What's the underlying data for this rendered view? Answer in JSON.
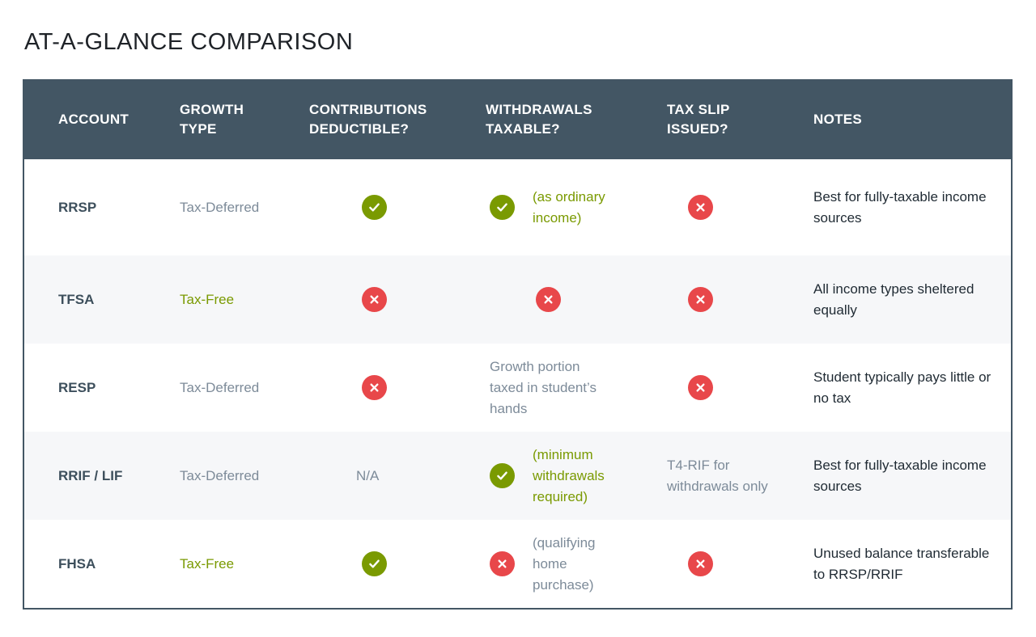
{
  "title": "AT-A-GLANCE COMPARISON",
  "colors": {
    "header": "#435664",
    "yes": "#7a9a01",
    "no": "#e8474a"
  },
  "columns": [
    "ACCOUNT",
    "GROWTH TYPE",
    "CONTRIBUTIONS DEDUCTIBLE?",
    "WITHDRAWALS TAXABLE?",
    "TAX SLIP ISSUED?",
    "NOTES"
  ],
  "rows": [
    {
      "account": "RRSP",
      "growth": "Tax-Deferred",
      "growth_style": "gray",
      "deductible": {
        "icon": "check"
      },
      "withdrawals": {
        "icon": "check",
        "text": "(as ordinary income)",
        "style": "green"
      },
      "slip": {
        "icon": "cross"
      },
      "notes": "Best for fully-taxable income sources"
    },
    {
      "account": "TFSA",
      "growth": "Tax-Free",
      "growth_style": "green",
      "deductible": {
        "icon": "cross"
      },
      "withdrawals": {
        "icon": "cross"
      },
      "slip": {
        "icon": "cross"
      },
      "notes": "All income types sheltered equally"
    },
    {
      "account": "RESP",
      "growth": "Tax-Deferred",
      "growth_style": "gray",
      "deductible": {
        "icon": "cross"
      },
      "withdrawals": {
        "text": "Growth portion taxed in student’s hands",
        "style": "gray"
      },
      "slip": {
        "icon": "cross"
      },
      "notes": "Student typically pays little or no tax"
    },
    {
      "account": "RRIF / LIF",
      "growth": "Tax-Deferred",
      "growth_style": "gray",
      "deductible": {
        "text": "N/A"
      },
      "withdrawals": {
        "icon": "check",
        "text": "(minimum withdrawals required)",
        "style": "green"
      },
      "slip": {
        "text": "T4-RIF for withdrawals only"
      },
      "notes": "Best for fully-taxable income sources"
    },
    {
      "account": "FHSA",
      "growth": "Tax-Free",
      "growth_style": "green",
      "deductible": {
        "icon": "check"
      },
      "withdrawals": {
        "icon": "cross",
        "text": "(qualifying home purchase)",
        "style": "gray"
      },
      "slip": {
        "icon": "cross"
      },
      "notes": "Unused balance transferable to RRSP/RRIF"
    }
  ]
}
